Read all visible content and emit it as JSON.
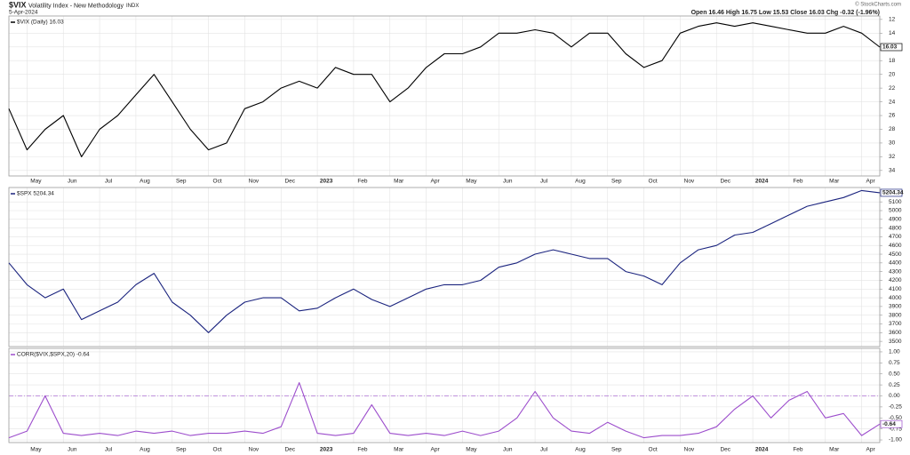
{
  "chart_data": [
    {
      "type": "line",
      "title": "$VIX",
      "subtitle": "Volatility Index - New Methodology",
      "exchange": "INDX",
      "date": "5-Apr-2024",
      "quote": "Open 16.46 High 16.75 Low 15.53 Close 16.03 Chg -0.32 (-1.96%)",
      "credit": "© StockCharts.com",
      "categories": [
        null,
        "May",
        null,
        "Jun",
        null,
        "Jul",
        null,
        "Aug",
        null,
        "Sep",
        null,
        "Oct",
        null,
        "Nov",
        null,
        "Dec",
        null,
        "2023",
        null,
        "Feb",
        null,
        "Mar",
        null,
        "Apr",
        null,
        "May",
        null,
        "Jun",
        null,
        "Jul",
        null,
        "Aug",
        null,
        "Sep",
        null,
        "Oct",
        null,
        "Nov",
        null,
        "Dec",
        null,
        "2024",
        null,
        "Feb",
        null,
        "Mar",
        null,
        "Apr",
        null
      ],
      "series": [
        {
          "name": "$VIX (Daily) 16.03",
          "color": "#000000",
          "values": [
            25,
            31,
            28,
            26,
            32,
            28,
            26,
            23,
            20,
            24,
            28,
            31,
            30,
            25,
            24,
            22,
            21,
            22,
            19,
            20,
            20,
            24,
            22,
            19,
            17,
            17,
            16,
            14,
            14,
            13.5,
            14,
            16,
            14,
            14,
            17,
            19,
            18,
            14,
            13,
            12.5,
            13,
            12.5,
            13,
            13.5,
            14,
            14,
            13,
            14,
            16.03
          ]
        }
      ],
      "ylim": [
        11.5,
        34.8
      ],
      "inverted": true,
      "yticks": [
        12,
        14,
        16,
        18,
        20,
        22,
        24,
        26,
        28,
        30,
        32,
        34
      ],
      "grid": true
    },
    {
      "type": "line",
      "series": [
        {
          "name": "$SPX 5204.34",
          "color": "#1a237e",
          "values": [
            4400,
            4150,
            4000,
            4100,
            3750,
            3850,
            3950,
            4150,
            4280,
            3950,
            3800,
            3600,
            3800,
            3950,
            4000,
            4000,
            3850,
            3880,
            4000,
            4100,
            3980,
            3900,
            4000,
            4100,
            4150,
            4150,
            4200,
            4350,
            4400,
            4500,
            4550,
            4500,
            4450,
            4450,
            4300,
            4250,
            4150,
            4400,
            4550,
            4600,
            4720,
            4750,
            4850,
            4950,
            5050,
            5100,
            5150,
            5230,
            5204.34
          ]
        }
      ],
      "ylim": [
        3440,
        5265
      ],
      "yticks": [
        3500,
        3600,
        3700,
        3800,
        3900,
        4000,
        4100,
        4200,
        4300,
        4400,
        4500,
        4600,
        4700,
        4800,
        4900,
        5000,
        5100
      ],
      "grid": true
    },
    {
      "type": "line",
      "categories": [
        null,
        "May",
        null,
        "Jun",
        null,
        "Jul",
        null,
        "Aug",
        null,
        "Sep",
        null,
        "Oct",
        null,
        "Nov",
        null,
        "Dec",
        null,
        "2023",
        null,
        "Feb",
        null,
        "Mar",
        null,
        "Apr",
        null,
        "May",
        null,
        "Jun",
        null,
        "Jul",
        null,
        "Aug",
        null,
        "Sep",
        null,
        "Oct",
        null,
        "Nov",
        null,
        "Dec",
        null,
        "2024",
        null,
        "Feb",
        null,
        "Mar",
        null,
        "Apr",
        null
      ],
      "series": [
        {
          "name": "CORR($VIX,$SPX,20) -0.64",
          "color": "#9c4dcc",
          "values": [
            -0.95,
            -0.8,
            0.0,
            -0.85,
            -0.9,
            -0.85,
            -0.9,
            -0.8,
            -0.85,
            -0.8,
            -0.9,
            -0.85,
            -0.85,
            -0.8,
            -0.85,
            -0.7,
            0.3,
            -0.85,
            -0.9,
            -0.85,
            -0.2,
            -0.85,
            -0.9,
            -0.85,
            -0.9,
            -0.8,
            -0.9,
            -0.8,
            -0.5,
            0.1,
            -0.5,
            -0.8,
            -0.85,
            -0.6,
            -0.8,
            -0.95,
            -0.9,
            -0.9,
            -0.85,
            -0.7,
            -0.3,
            0.0,
            -0.5,
            -0.1,
            0.1,
            -0.5,
            -0.4,
            -0.9,
            -0.64
          ]
        }
      ],
      "ylim": [
        -1.06,
        1.08
      ],
      "yticks": [
        {
          "value": 1,
          "label": "1.00"
        },
        {
          "value": 0.75,
          "label": "0.75"
        },
        {
          "value": 0.5,
          "label": "0.50"
        },
        {
          "value": 0.25,
          "label": "0.25"
        },
        {
          "value": 0,
          "label": "0.00"
        },
        {
          "value": -0.25,
          "label": "-0.25"
        },
        {
          "value": -0.5,
          "label": "-0.50"
        },
        {
          "value": -0.75,
          "label": "-0.75"
        },
        {
          "value": -1,
          "label": "-1.00"
        }
      ],
      "reference_line": 0,
      "grid": true
    }
  ]
}
